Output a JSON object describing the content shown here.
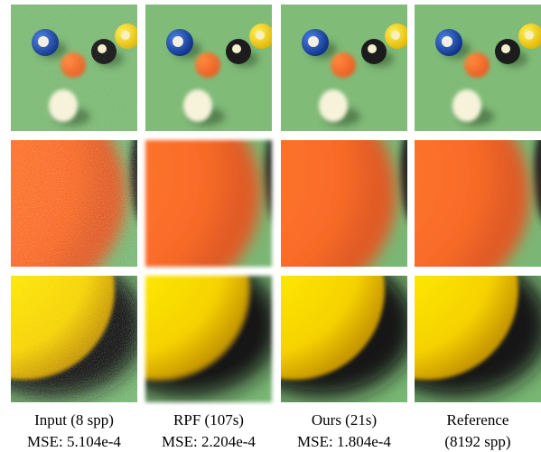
{
  "panels": [
    {
      "title": "Input (8 spp)",
      "subtitle": "MSE: 5.104e-4"
    },
    {
      "title": "RPF (107s)",
      "subtitle": "MSE: 2.204e-4"
    },
    {
      "title": "Ours (21s)",
      "subtitle": "MSE: 1.804e-4"
    },
    {
      "title": "Reference",
      "subtitle": "(8192 spp)"
    }
  ]
}
